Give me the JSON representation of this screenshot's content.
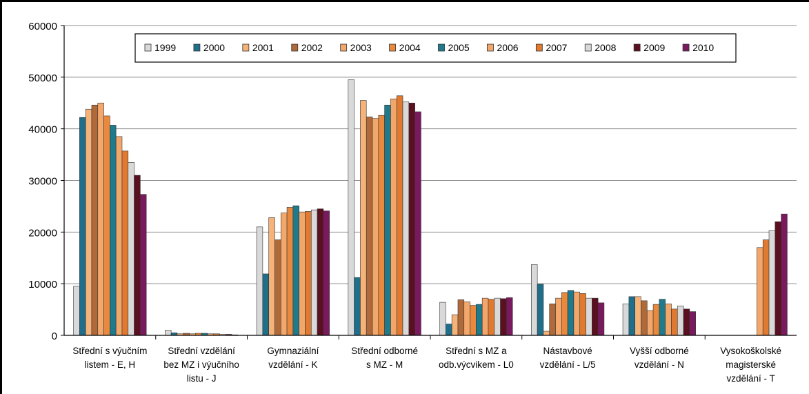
{
  "chart_data": {
    "type": "bar",
    "title": "",
    "xlabel": "",
    "ylabel": "",
    "ylim": [
      0,
      60000
    ],
    "yticks": [
      "0",
      "10000",
      "20000",
      "30000",
      "40000",
      "50000",
      "60000"
    ],
    "grid": true,
    "legend_position": "top",
    "categories": [
      [
        "Střední s výučním",
        "listem - E, H"
      ],
      [
        "Střední vzdělání",
        "bez MZ i výučního",
        "listu - J"
      ],
      [
        "Gymnaziální",
        "vzdělání - K"
      ],
      [
        "Střední odborné",
        "s MZ - M"
      ],
      [
        "Střední s MZ a",
        "odb.výcvikem - L0"
      ],
      [
        "Nástavbové",
        "vzdělání - L/5"
      ],
      [
        "Vyšší odborné",
        "vzdělání - N"
      ],
      [
        "Vysokoškolské",
        "magisterské",
        "vzdělání - T"
      ]
    ],
    "series": [
      {
        "name": "1999",
        "color": "#d9d9d9",
        "values": [
          9500,
          1000,
          21000,
          49500,
          6400,
          13700,
          6100,
          0
        ]
      },
      {
        "name": "2000",
        "color": "#1f6f8b",
        "values": [
          42200,
          500,
          11900,
          11200,
          2200,
          9900,
          7500,
          0
        ]
      },
      {
        "name": "2001",
        "color": "#f5b37a",
        "values": [
          43800,
          300,
          22800,
          45500,
          4000,
          800,
          7500,
          0
        ]
      },
      {
        "name": "2002",
        "color": "#b06a3a",
        "values": [
          44600,
          400,
          18500,
          42300,
          6900,
          6100,
          6700,
          0
        ]
      },
      {
        "name": "2003",
        "color": "#f3a76a",
        "values": [
          45000,
          300,
          23700,
          42000,
          6500,
          7200,
          4800,
          0
        ]
      },
      {
        "name": "2004",
        "color": "#e8893d",
        "values": [
          42500,
          400,
          24800,
          42600,
          5800,
          8300,
          6000,
          0
        ]
      },
      {
        "name": "2005",
        "color": "#1f7a8c",
        "values": [
          40700,
          400,
          25100,
          44600,
          6000,
          8700,
          7000,
          0
        ]
      },
      {
        "name": "2006",
        "color": "#f2a66a",
        "values": [
          38500,
          300,
          23900,
          45800,
          7200,
          8400,
          6100,
          17000
        ]
      },
      {
        "name": "2007",
        "color": "#e07a30",
        "values": [
          35700,
          300,
          24000,
          46400,
          7000,
          8100,
          5100,
          18500
        ]
      },
      {
        "name": "2008",
        "color": "#d9d9d9",
        "values": [
          33500,
          200,
          24300,
          45200,
          7200,
          7200,
          5700,
          20300
        ]
      },
      {
        "name": "2009",
        "color": "#5a1020",
        "values": [
          31000,
          200,
          24500,
          45000,
          7100,
          7200,
          5100,
          22000
        ]
      },
      {
        "name": "2010",
        "color": "#7a1a5e",
        "values": [
          27300,
          100,
          24100,
          43300,
          7300,
          6300,
          4600,
          23500
        ]
      }
    ]
  }
}
